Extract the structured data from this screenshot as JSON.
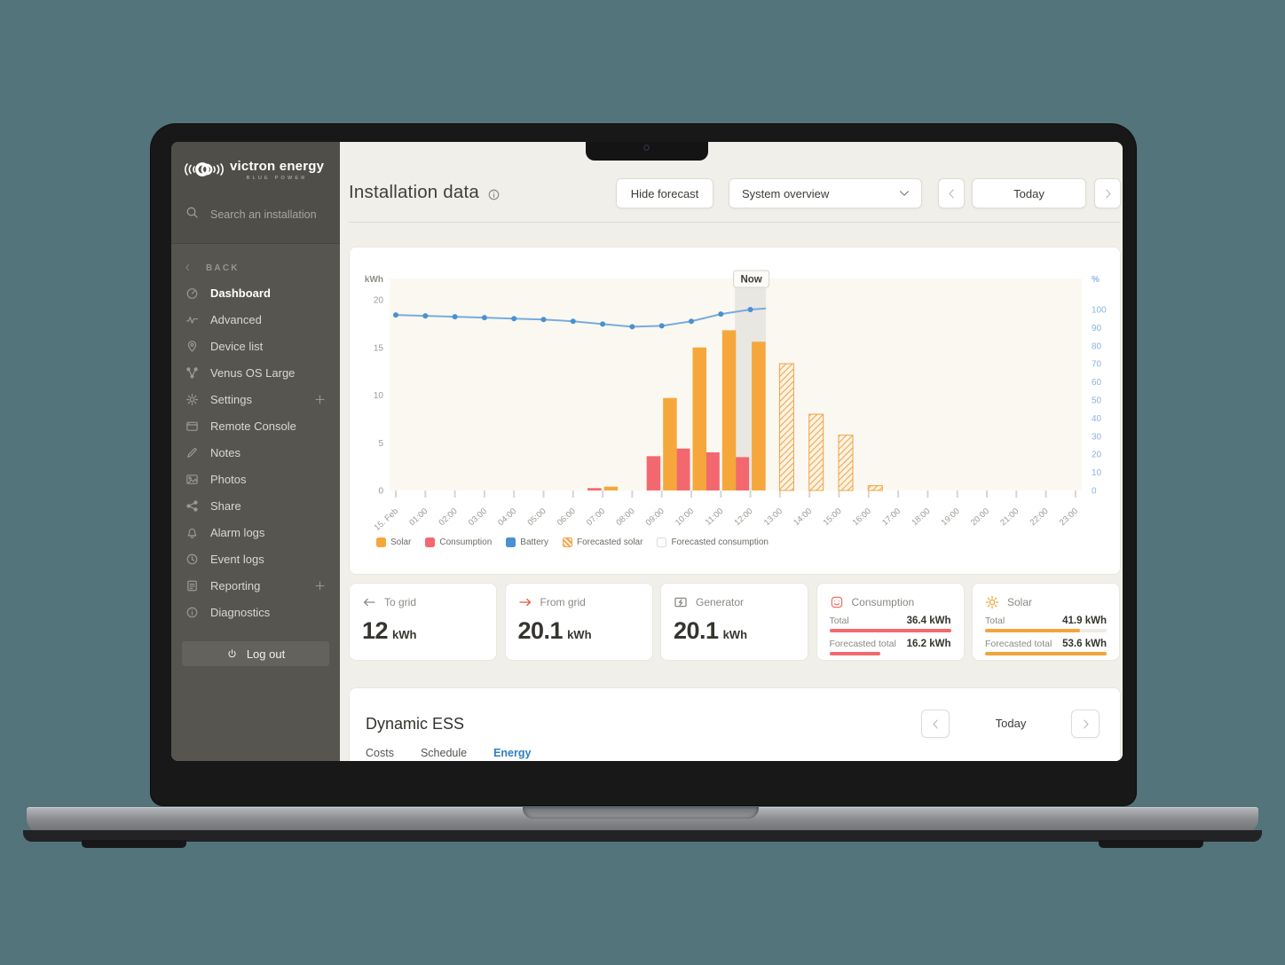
{
  "sidebar": {
    "logo": {
      "brand": "victron energy",
      "sub": "BLUE POWER"
    },
    "search": {
      "placeholder": "Search an installation"
    },
    "back_label": "BACK",
    "items": [
      {
        "label": "Dashboard",
        "icon": "gauge",
        "active": true
      },
      {
        "label": "Advanced",
        "icon": "pulse"
      },
      {
        "label": "Device list",
        "icon": "pin"
      },
      {
        "label": "Venus OS Large",
        "icon": "nodes"
      },
      {
        "label": "Settings",
        "icon": "gear",
        "plus": true
      },
      {
        "label": "Remote Console",
        "icon": "console"
      },
      {
        "label": "Notes",
        "icon": "note"
      },
      {
        "label": "Photos",
        "icon": "photo"
      },
      {
        "label": "Share",
        "icon": "share"
      },
      {
        "label": "Alarm logs",
        "icon": "bell"
      },
      {
        "label": "Event logs",
        "icon": "clock"
      },
      {
        "label": "Reporting",
        "icon": "report",
        "plus": true
      },
      {
        "label": "Diagnostics",
        "icon": "info-circle"
      }
    ],
    "logout_label": "Log out"
  },
  "header": {
    "title": "Installation data",
    "hide_forecast": "Hide forecast",
    "system_select": "System overview",
    "today": "Today"
  },
  "chart_data": {
    "type": "mixed",
    "title": "Installation data",
    "x_labels": [
      "15. Feb",
      "01:00",
      "02:00",
      "03:00",
      "04:00",
      "05:00",
      "06:00",
      "07:00",
      "08:00",
      "09:00",
      "10:00",
      "11:00",
      "12:00",
      "13:00",
      "14:00",
      "15:00",
      "16:00",
      "17:00",
      "18:00",
      "19:00",
      "20:00",
      "21:00",
      "22:00",
      "23:00"
    ],
    "left_axis": {
      "label": "kWh",
      "min": 0,
      "max": 20,
      "ticks": [
        0,
        5,
        10,
        15,
        20
      ]
    },
    "right_axis": {
      "label": "%",
      "min": 0,
      "max": 100,
      "ticks": [
        0,
        10,
        20,
        30,
        40,
        50,
        60,
        70,
        80,
        90,
        100
      ]
    },
    "now": {
      "label": "Now",
      "hour": 12
    },
    "series": [
      {
        "name": "Solar",
        "type": "bar",
        "style": "solid",
        "color": "#f6a73c",
        "unit": "kWh",
        "values": {
          "7": 0.4,
          "9": 9.7,
          "10": 15.0,
          "11": 16.8,
          "12": 15.6
        }
      },
      {
        "name": "Consumption",
        "type": "bar",
        "style": "solid",
        "color": "#f3686e",
        "unit": "kWh",
        "values": {
          "7": 0.25,
          "9": 3.6,
          "10": 4.4,
          "11": 4.0,
          "12": 3.5
        }
      },
      {
        "name": "Battery",
        "type": "line",
        "style": "line",
        "color": "#4a90d2",
        "unit": "%",
        "axis": "right",
        "x_start_hour": 0,
        "values": [
          97,
          96.5,
          96,
          95.5,
          95,
          94.5,
          93.5,
          92,
          90.5,
          91,
          93.5,
          97.5,
          100
        ]
      },
      {
        "name": "Forecasted solar",
        "type": "bar",
        "style": "hatched",
        "color": "#f0a348",
        "unit": "kWh",
        "values": {
          "13": 13.3,
          "14": 8.0,
          "15": 5.8,
          "16": 0.5
        }
      },
      {
        "name": "Forecasted consumption",
        "type": "bar",
        "style": "outline",
        "color": "#e8e6df",
        "unit": "kWh",
        "values": {}
      }
    ],
    "legend": [
      "Solar",
      "Consumption",
      "Battery",
      "Forecasted solar",
      "Forecasted consumption"
    ]
  },
  "stats": {
    "cards": [
      {
        "kind": "value",
        "icon": "arrow-left",
        "icon_color": "#8b8984",
        "label": "To grid",
        "value": "12",
        "unit": "kWh"
      },
      {
        "kind": "value",
        "icon": "arrow-right",
        "icon_color": "#e9573f",
        "label": "From grid",
        "value": "20.1",
        "unit": "kWh"
      },
      {
        "kind": "value",
        "icon": "generator",
        "icon_color": "#8b8984",
        "label": "Generator",
        "value": "20.1",
        "unit": "kWh"
      },
      {
        "kind": "totals",
        "icon": "consumption",
        "icon_color": "#ee7268",
        "label": "Consumption",
        "bar_color": "#f3686e",
        "track": false,
        "rows": [
          {
            "label": "Total",
            "value": "36.4 kWh",
            "pct": 100
          },
          {
            "label": "Forecasted total",
            "value": "16.2 kWh",
            "pct": 42
          }
        ]
      },
      {
        "kind": "totals",
        "icon": "sun",
        "icon_color": "#f2a43b",
        "label": "Solar",
        "bar_color": "#f2a43b",
        "track": true,
        "rows": [
          {
            "label": "Total",
            "value": "41.9 kWh",
            "pct": 78
          },
          {
            "label": "Forecasted total",
            "value": "53.6 kWh",
            "pct": 100
          }
        ]
      }
    ]
  },
  "dess": {
    "title": "Dynamic ESS",
    "tabs": [
      {
        "label": "Costs"
      },
      {
        "label": "Schedule"
      },
      {
        "label": "Energy",
        "active": true
      }
    ],
    "today": "Today"
  }
}
